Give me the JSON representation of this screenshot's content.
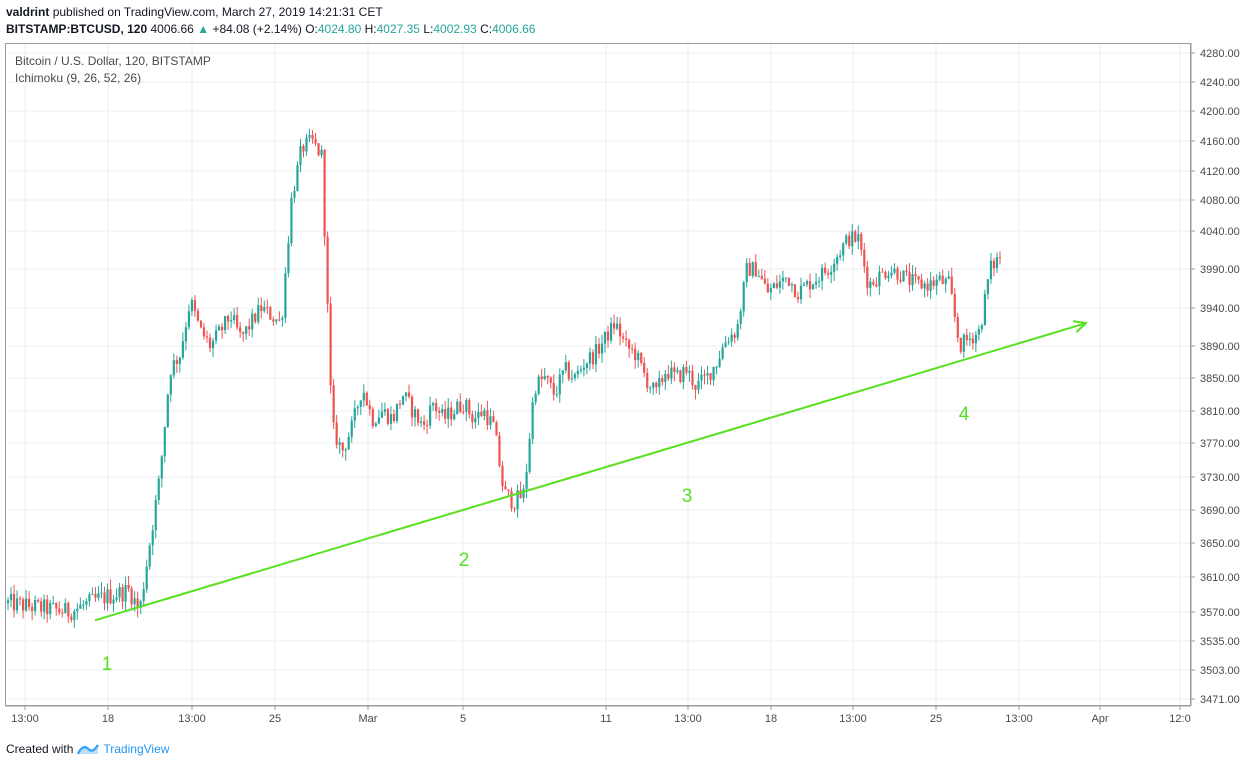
{
  "header": {
    "user": "valdrint",
    "published_text": "published on TradingView.com, March 27, 2019 14:21:31 CET",
    "symbol": "BITSTAMP:BTCUSD, 120",
    "last": "4006.66",
    "change": "+84.08 (+2.14%)",
    "o_label": "O:",
    "o_value": "4024.80",
    "h_label": "H:",
    "h_value": "4027.35",
    "l_label": "L:",
    "l_value": "4002.93",
    "c_label": "C:",
    "c_value": "4006.66"
  },
  "legend": {
    "title": "Bitcoin / U.S. Dollar, 120, BITSTAMP",
    "indicator": "Ichimoku (9, 26, 52, 26)"
  },
  "footer": {
    "created_with": "Created with",
    "brand": "TradingView"
  },
  "colors": {
    "up": "#26a69a",
    "down": "#ef5350",
    "trendline": "#55e11f",
    "annotation": "#55e11f",
    "grid": "#e8eef5"
  },
  "chart_data": {
    "type": "candlestick",
    "y_axis_ticks": [
      "4280.00",
      "4240.00",
      "4200.00",
      "4160.00",
      "4120.00",
      "4080.00",
      "4040.00",
      "3990.00",
      "3940.00",
      "3890.00",
      "3850.00",
      "3810.00",
      "3770.00",
      "3730.00",
      "3690.00",
      "3650.00",
      "3610.00",
      "3570.00",
      "3535.00",
      "3503.00",
      "3471.00"
    ],
    "x_axis_ticks": [
      "13:00",
      "18",
      "13:00",
      "25",
      "Mar",
      "5",
      "11",
      "13:00",
      "18",
      "13:00",
      "25",
      "13:00",
      "Apr",
      "12:0"
    ],
    "swing_points": [
      {
        "label": "1",
        "value": 3560
      },
      {
        "label": "2",
        "value": 3690
      },
      {
        "label": "3",
        "value": 3770
      },
      {
        "label": "4",
        "value": 3870
      }
    ],
    "trendline": {
      "from_value": 3560,
      "to_value": 3920
    },
    "price_path": [
      [
        0,
        3580
      ],
      [
        3,
        3575
      ],
      [
        6,
        3570
      ],
      [
        9,
        3585
      ],
      [
        12,
        3595
      ],
      [
        13,
        3570
      ],
      [
        14,
        3650
      ],
      [
        15,
        3730
      ],
      [
        16,
        3860
      ],
      [
        17,
        3880
      ],
      [
        18,
        3950
      ],
      [
        19,
        3910
      ],
      [
        20,
        3890
      ],
      [
        21,
        3910
      ],
      [
        22,
        3930
      ],
      [
        23,
        3900
      ],
      [
        24,
        3920
      ],
      [
        25,
        3940
      ],
      [
        26,
        3930
      ],
      [
        27,
        3920
      ],
      [
        28,
        4080
      ],
      [
        29,
        4150
      ],
      [
        30,
        4160
      ],
      [
        31,
        4140
      ],
      [
        32,
        3790
      ],
      [
        33,
        3760
      ],
      [
        34,
        3790
      ],
      [
        35,
        3840
      ],
      [
        36,
        3800
      ],
      [
        37,
        3810
      ],
      [
        38,
        3800
      ],
      [
        39,
        3830
      ],
      [
        40,
        3810
      ],
      [
        41,
        3790
      ],
      [
        42,
        3820
      ],
      [
        43,
        3800
      ],
      [
        44,
        3810
      ],
      [
        45,
        3820
      ],
      [
        46,
        3800
      ],
      [
        47,
        3810
      ],
      [
        48,
        3790
      ],
      [
        49,
        3710
      ],
      [
        50,
        3700
      ],
      [
        51,
        3710
      ],
      [
        52,
        3840
      ],
      [
        53,
        3850
      ],
      [
        54,
        3830
      ],
      [
        55,
        3860
      ],
      [
        56,
        3850
      ],
      [
        57,
        3870
      ],
      [
        58,
        3880
      ],
      [
        59,
        3900
      ],
      [
        60,
        3920
      ],
      [
        61,
        3890
      ],
      [
        62,
        3880
      ],
      [
        63,
        3850
      ],
      [
        64,
        3830
      ],
      [
        65,
        3860
      ],
      [
        66,
        3850
      ],
      [
        67,
        3860
      ],
      [
        68,
        3840
      ],
      [
        69,
        3850
      ],
      [
        70,
        3870
      ],
      [
        71,
        3900
      ],
      [
        72,
        3910
      ],
      [
        73,
        3990
      ],
      [
        74,
        3990
      ],
      [
        75,
        3960
      ],
      [
        76,
        3970
      ],
      [
        77,
        3980
      ],
      [
        78,
        3960
      ],
      [
        79,
        3970
      ],
      [
        80,
        3980
      ],
      [
        81,
        3990
      ],
      [
        82,
        4010
      ],
      [
        83,
        4030
      ],
      [
        84,
        4030
      ],
      [
        85,
        3970
      ],
      [
        86,
        3980
      ],
      [
        87,
        3990
      ],
      [
        88,
        3985
      ],
      [
        89,
        3975
      ],
      [
        90,
        3970
      ],
      [
        91,
        3970
      ],
      [
        92,
        3975
      ],
      [
        93,
        3970
      ],
      [
        94,
        3890
      ],
      [
        95,
        3900
      ],
      [
        96,
        3910
      ],
      [
        97,
        3990
      ],
      [
        98,
        4007
      ]
    ]
  }
}
